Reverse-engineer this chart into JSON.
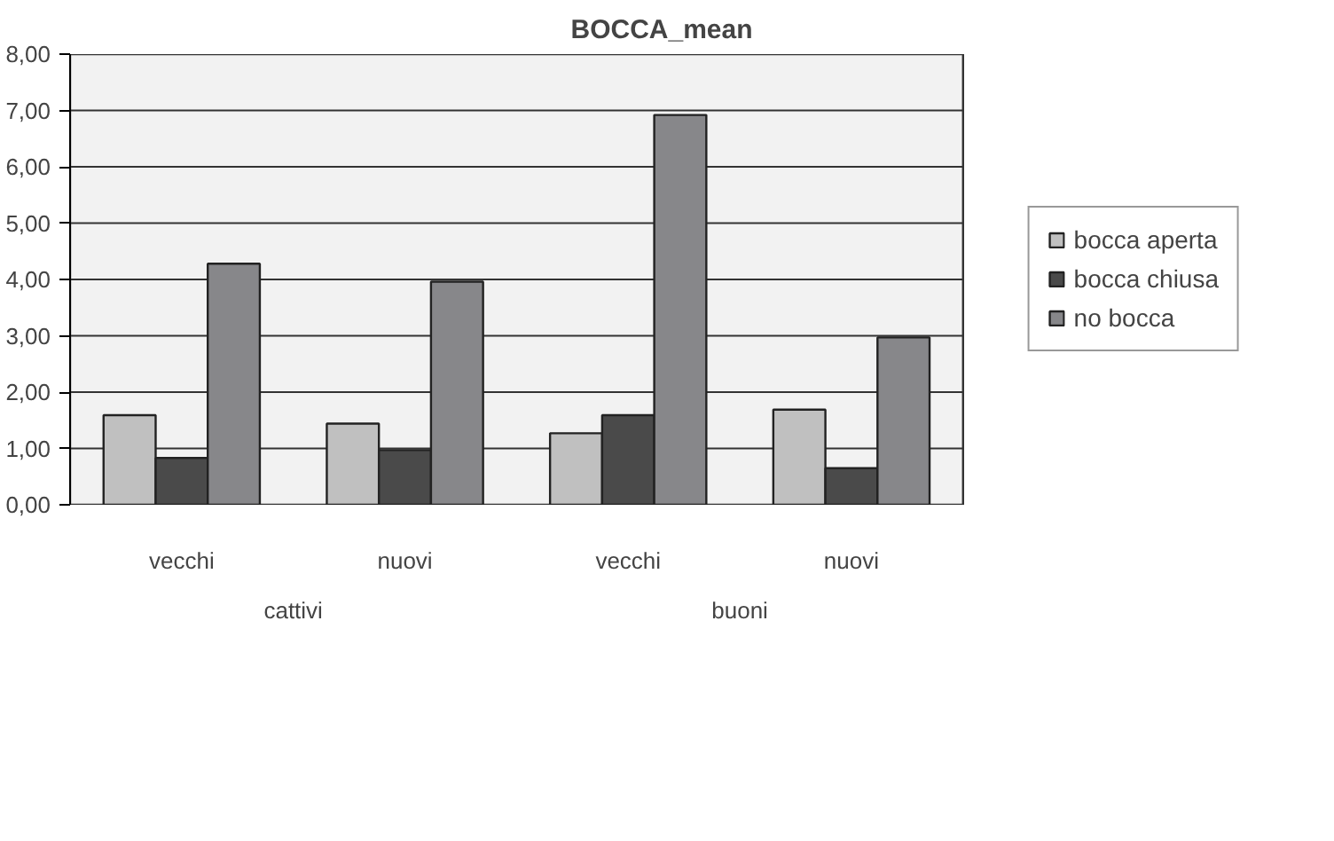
{
  "chart_data": {
    "type": "bar",
    "title": "BOCCA_mean",
    "categories": [
      "vecchi",
      "nuovi",
      "vecchi",
      "nuovi"
    ],
    "annotations": [
      "cattivi",
      "buoni"
    ],
    "series": [
      {
        "name": "bocca aperta",
        "color": "#c0c0c0",
        "values": [
          1.59,
          1.44,
          1.27,
          1.69
        ]
      },
      {
        "name": "bocca chiusa",
        "color": "#4a4a4a",
        "values": [
          0.83,
          0.97,
          1.59,
          0.65
        ]
      },
      {
        "name": "no bocca",
        "color": "#87878a",
        "values": [
          4.28,
          3.96,
          6.92,
          2.97
        ]
      }
    ],
    "ylim": [
      0,
      8
    ],
    "yticks": [
      {
        "value": 0,
        "label": "0,00"
      },
      {
        "value": 1,
        "label": "1,00"
      },
      {
        "value": 2,
        "label": "2,00"
      },
      {
        "value": 3,
        "label": "3,00"
      },
      {
        "value": 4,
        "label": "4,00"
      },
      {
        "value": 5,
        "label": "5,00"
      },
      {
        "value": 6,
        "label": "6,00"
      },
      {
        "value": 7,
        "label": "7,00"
      },
      {
        "value": 8,
        "label": "8,00"
      }
    ],
    "grid": "y",
    "legend": "right"
  }
}
